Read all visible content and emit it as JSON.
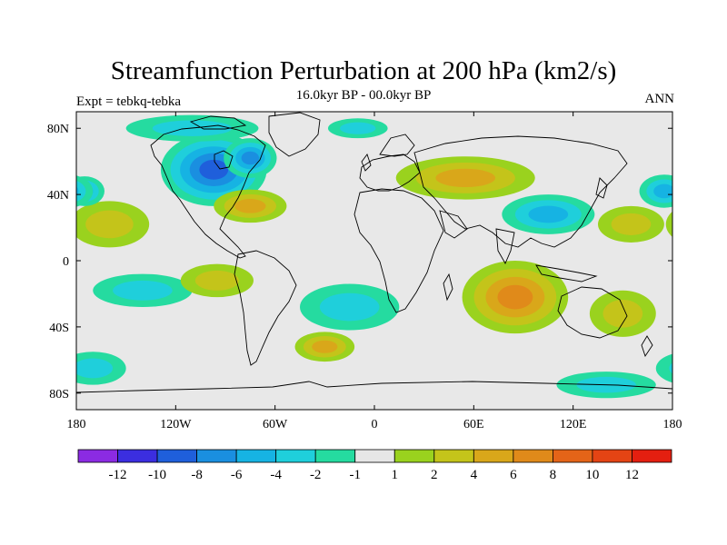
{
  "title": "Streamfunction Perturbation at 200 hPa (km2/s)",
  "left_label": "Expt = tebkq-tebka",
  "center_label": "16.0kyr BP - 00.0kyr BP",
  "right_label": "ANN",
  "map": {
    "lat_ticks": [
      {
        "value": 80,
        "label": "80N"
      },
      {
        "value": 40,
        "label": "40N"
      },
      {
        "value": 0,
        "label": "0"
      },
      {
        "value": -40,
        "label": "40S"
      },
      {
        "value": -80,
        "label": "80S"
      }
    ],
    "lon_ticks": [
      {
        "value": -180,
        "label": "180"
      },
      {
        "value": -120,
        "label": "120W"
      },
      {
        "value": -60,
        "label": "60W"
      },
      {
        "value": 0,
        "label": "0"
      },
      {
        "value": 60,
        "label": "60E"
      },
      {
        "value": 120,
        "label": "120E"
      },
      {
        "value": 180,
        "label": "180"
      }
    ],
    "background_color": "#e8e8e8",
    "coastline_color": "#000000",
    "features": [
      {
        "name": "north-america-low",
        "lon": -97,
        "lat": 55,
        "rx": 32,
        "ry": 22,
        "value": -9
      },
      {
        "name": "north-america-low-2",
        "lon": -75,
        "lat": 62,
        "rx": 16,
        "ry": 12,
        "value": -7
      },
      {
        "name": "atlantic-high",
        "lon": -75,
        "lat": 33,
        "rx": 22,
        "ry": 10,
        "value": 5
      },
      {
        "name": "pacific-high",
        "lon": -160,
        "lat": 22,
        "rx": 24,
        "ry": 14,
        "value": 3
      },
      {
        "name": "pacific-low",
        "lon": -175,
        "lat": 42,
        "rx": 12,
        "ry": 9,
        "value": -5
      },
      {
        "name": "arctic-low",
        "lon": -110,
        "lat": 80,
        "rx": 40,
        "ry": 8,
        "value": -2
      },
      {
        "name": "eurasia-high",
        "lon": 55,
        "lat": 50,
        "rx": 42,
        "ry": 13,
        "value": 5
      },
      {
        "name": "asia-low",
        "lon": 105,
        "lat": 28,
        "rx": 28,
        "ry": 12,
        "value": -4
      },
      {
        "name": "west-pacific-low",
        "lon": 175,
        "lat": 42,
        "rx": 15,
        "ry": 10,
        "value": -4
      },
      {
        "name": "east-asia-high",
        "lon": 155,
        "lat": 22,
        "rx": 20,
        "ry": 11,
        "value": 3
      },
      {
        "name": "north-atlantic-low",
        "lon": -10,
        "lat": 80,
        "rx": 18,
        "ry": 6,
        "value": -2
      },
      {
        "name": "indian-ocean-high",
        "lon": 85,
        "lat": -22,
        "rx": 32,
        "ry": 22,
        "value": 6
      },
      {
        "name": "south-pacific-low",
        "lon": -140,
        "lat": -18,
        "rx": 30,
        "ry": 10,
        "value": -3
      },
      {
        "name": "south-america-high",
        "lon": -95,
        "lat": -12,
        "rx": 22,
        "ry": 10,
        "value": 2
      },
      {
        "name": "south-atlantic-low",
        "lon": -15,
        "lat": -28,
        "rx": 30,
        "ry": 14,
        "value": -3
      },
      {
        "name": "south-atlantic-high",
        "lon": -30,
        "lat": -52,
        "rx": 18,
        "ry": 9,
        "value": 4
      },
      {
        "name": "australia-high",
        "lon": 150,
        "lat": -32,
        "rx": 20,
        "ry": 14,
        "value": 2
      },
      {
        "name": "southern-ocean-low",
        "lon": 140,
        "lat": -75,
        "rx": 30,
        "ry": 8,
        "value": -2
      },
      {
        "name": "south-pacific-low-2",
        "lon": -170,
        "lat": -65,
        "rx": 20,
        "ry": 10,
        "value": -2
      }
    ]
  },
  "colorbar": {
    "colors": [
      "#8b2be2",
      "#3b2ee0",
      "#1f5fdb",
      "#1a8fe0",
      "#16b3e3",
      "#1fcfdb",
      "#25dba0",
      "#e6e6e6",
      "#9ad21e",
      "#c4c41a",
      "#d9a71a",
      "#e08a1a",
      "#e46418",
      "#e44414",
      "#e41f10"
    ],
    "labels": [
      "-12",
      "-10",
      "-8",
      "-6",
      "-4",
      "-2",
      "-1",
      "1",
      "2",
      "4",
      "6",
      "8",
      "10",
      "12"
    ],
    "levels": [
      -12,
      -10,
      -8,
      -6,
      -4,
      -2,
      -1,
      1,
      2,
      4,
      6,
      8,
      10,
      12
    ]
  }
}
